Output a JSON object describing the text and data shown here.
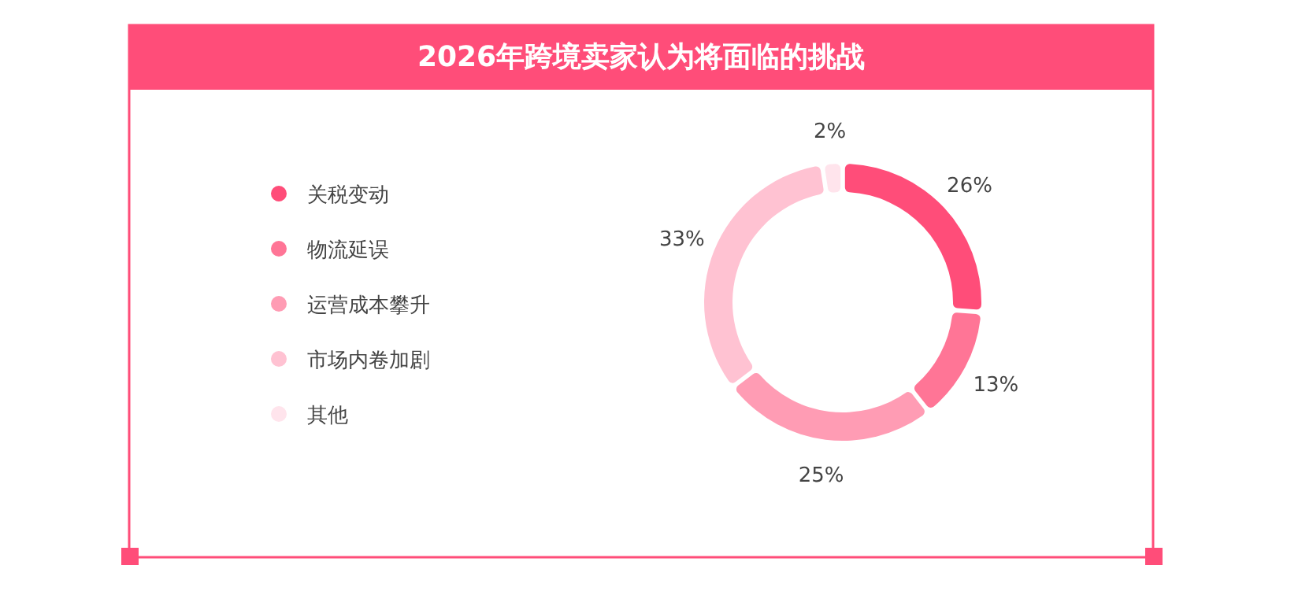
{
  "chart_data": {
    "type": "donut",
    "title": "2026年跨境卖家认为将面临的挑战",
    "categories": [
      "关税变动",
      "物流延误",
      "运营成本攀升",
      "市场内卷加剧",
      "其他"
    ],
    "values": [
      26,
      13,
      25,
      33,
      2
    ],
    "value_labels": [
      "26%",
      "13%",
      "25%",
      "33%",
      "2%"
    ],
    "colors": [
      "#ff4d79",
      "#ff7596",
      "#ff9cb4",
      "#ffc2d2",
      "#ffe4ec"
    ],
    "legend": "left"
  }
}
